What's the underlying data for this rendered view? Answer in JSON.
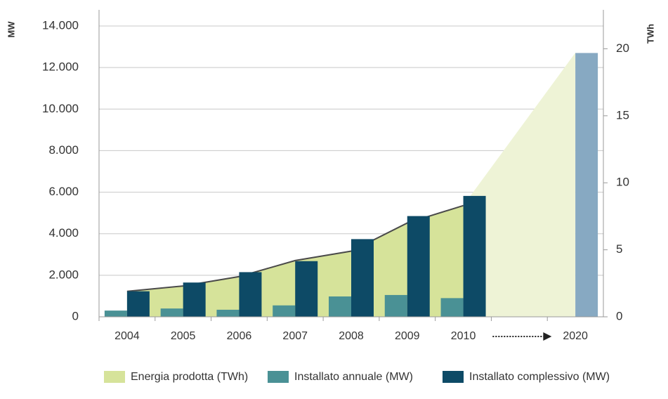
{
  "chart_data": {
    "type": "bar",
    "y_label": "MW",
    "y2_label": "TWh",
    "categories": [
      "2004",
      "2005",
      "2006",
      "2007",
      "2008",
      "2009",
      "2010",
      null,
      "2020"
    ],
    "series": [
      {
        "name": "Energia prodotta (TWh)",
        "type": "area",
        "axis": "y2",
        "color": "#d6e39a",
        "projection_color": "#eef3d6",
        "line_color": "#4a4a4a",
        "values": [
          1.9,
          2.3,
          3.0,
          4.2,
          4.9,
          7.0,
          8.3,
          null,
          19.7
        ]
      },
      {
        "name": "Installato annuale (MW)",
        "type": "bar",
        "color": "#4a9195",
        "values": [
          300,
          400,
          340,
          550,
          980,
          1050,
          900,
          null,
          null
        ]
      },
      {
        "name": "Installato complessivo (MW)",
        "type": "bar",
        "color": "#0d4a66",
        "colors": [
          "#0d4a66",
          "#0d4a66",
          "#0d4a66",
          "#0d4a66",
          "#0d4a66",
          "#0d4a66",
          "#0d4a66",
          "#0d4a66",
          "#87a9c2"
        ],
        "values": [
          1230,
          1650,
          2150,
          2680,
          3740,
          4850,
          5820,
          null,
          12700
        ]
      }
    ],
    "ylim": [
      0,
      14000
    ],
    "yticks": [
      0,
      {
        "value": 2000,
        "label": "2.000"
      },
      {
        "value": 4000,
        "label": "4.000"
      },
      {
        "value": 6000,
        "label": "6.000"
      },
      {
        "value": 8000,
        "label": "8.000"
      },
      {
        "value": 10000,
        "label": "10.000"
      },
      {
        "value": 12000,
        "label": "12.000"
      },
      {
        "value": 14000,
        "label": "14.000"
      }
    ],
    "y2lim": [
      0,
      21.7
    ],
    "y2ticks": [
      0,
      5,
      10,
      15,
      20
    ],
    "grid": true
  }
}
